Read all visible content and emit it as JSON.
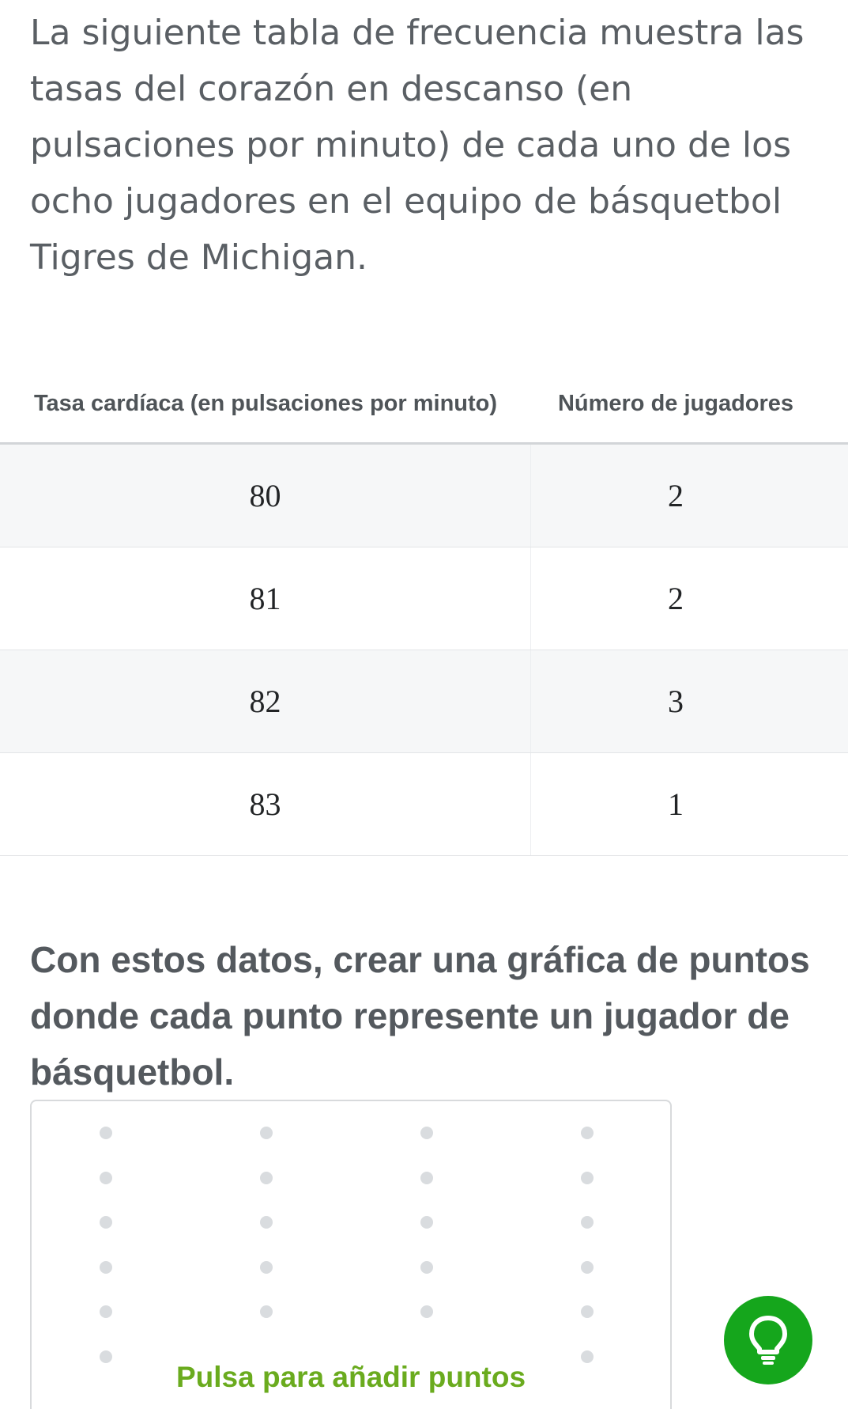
{
  "intro_text": "La siguiente tabla de frecuencia muestra las tasas del corazón en descanso (en pulsaciones por minuto) de cada uno de los ocho jugadores en el equipo de básquetbol Tigres de Michigan.",
  "table": {
    "headers": {
      "rate": "Tasa cardíaca (en pulsaciones por minuto)",
      "count": "Número de jugadores"
    },
    "rows": [
      {
        "rate": "80",
        "count": "2"
      },
      {
        "rate": "81",
        "count": "2"
      },
      {
        "rate": "82",
        "count": "3"
      },
      {
        "rate": "83",
        "count": "1"
      }
    ]
  },
  "prompt_text": "Con estos datos, crear una gráfica de puntos donde cada punto represente un jugador de básquetbol.",
  "dot_plot": {
    "tap_label": "Pulsa para añadir puntos",
    "columns": 4,
    "visible_rows": 6
  },
  "colors": {
    "hint_button": "#15a61c",
    "tap_label": "#6aab1e"
  },
  "icons": {
    "hint": "lightbulb-icon"
  }
}
